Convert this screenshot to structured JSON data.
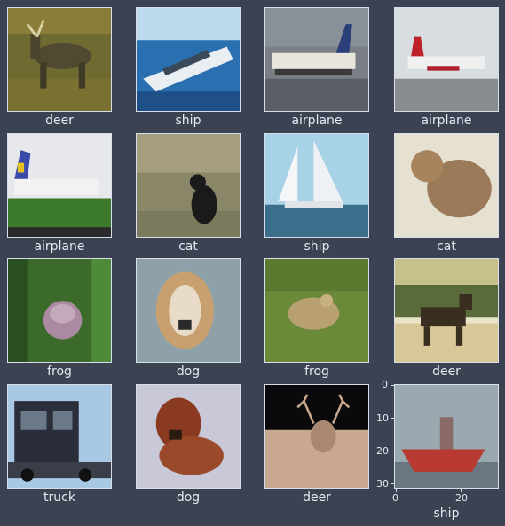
{
  "tiles": [
    {
      "label": "deer"
    },
    {
      "label": "ship"
    },
    {
      "label": "airplane"
    },
    {
      "label": "airplane"
    },
    {
      "label": "airplane"
    },
    {
      "label": "cat"
    },
    {
      "label": "ship"
    },
    {
      "label": "cat"
    },
    {
      "label": "frog"
    },
    {
      "label": "dog"
    },
    {
      "label": "frog"
    },
    {
      "label": "deer"
    },
    {
      "label": "truck"
    },
    {
      "label": "dog"
    },
    {
      "label": "deer"
    },
    {
      "label": "ship"
    }
  ],
  "axes": {
    "y_ticks": [
      "0",
      "10",
      "20",
      "30"
    ],
    "x_ticks": [
      "0",
      "20"
    ]
  }
}
